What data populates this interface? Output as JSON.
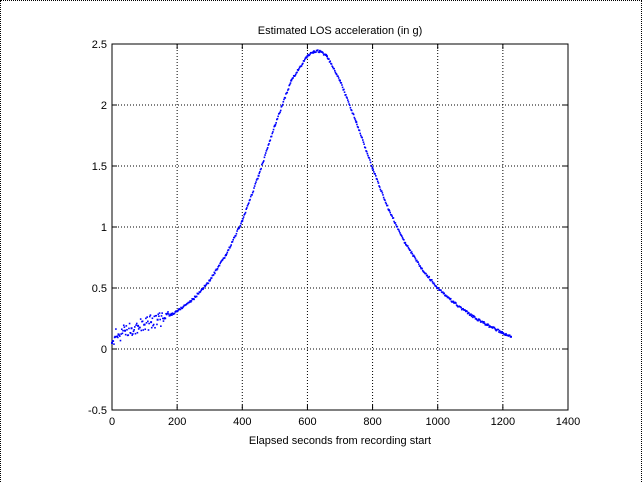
{
  "chart_data": {
    "type": "scatter",
    "title": "Estimated LOS acceleration (in g)",
    "xlabel": "Elapsed seconds from recording start",
    "ylabel": "",
    "xlim": [
      0,
      1400
    ],
    "ylim": [
      -0.5,
      2.5
    ],
    "xticks": [
      "0",
      "200",
      "400",
      "600",
      "800",
      "1000",
      "1200",
      "1400"
    ],
    "yticks": [
      "-0.5",
      "0",
      "0.5",
      "1",
      "1.5",
      "2",
      "2.5"
    ],
    "grid": true,
    "marker_color": "#0000ff",
    "series": [
      {
        "name": "",
        "x": [
          0,
          10,
          20,
          40,
          60,
          80,
          100,
          120,
          140,
          160,
          180,
          200,
          250,
          300,
          350,
          400,
          450,
          500,
          550,
          600,
          620,
          640,
          660,
          700,
          750,
          800,
          850,
          900,
          950,
          1000,
          1050,
          1100,
          1150,
          1200,
          1225
        ],
        "y": [
          0.05,
          0.1,
          0.12,
          0.15,
          0.17,
          0.19,
          0.2,
          0.22,
          0.24,
          0.25,
          0.28,
          0.31,
          0.41,
          0.56,
          0.77,
          1.05,
          1.42,
          1.83,
          2.2,
          2.4,
          2.44,
          2.44,
          2.4,
          2.2,
          1.86,
          1.48,
          1.14,
          0.87,
          0.66,
          0.5,
          0.38,
          0.28,
          0.2,
          0.13,
          0.1
        ]
      }
    ]
  }
}
